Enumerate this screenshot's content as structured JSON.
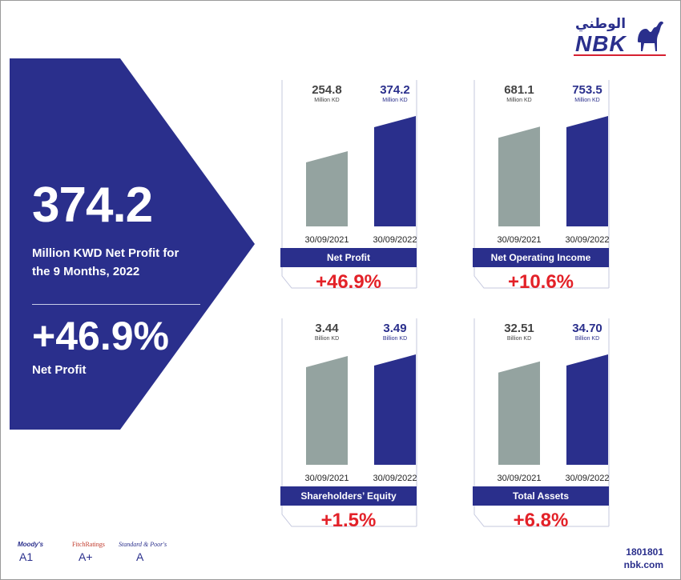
{
  "colors": {
    "navy": "#2a2f8c",
    "gray_bar": "#94a3a0",
    "red": "#e32128"
  },
  "hero": {
    "value": "374.2",
    "description": "Million KWD Net Profit for the 9 Months, 2022",
    "change": "+46.9%",
    "change_label": "Net Profit"
  },
  "brand": {
    "arabic": "الوطني",
    "name": "NBK",
    "logo_icon": "camel-icon"
  },
  "ratings": [
    {
      "agency": "Moody's",
      "grade": "A1"
    },
    {
      "agency": "FitchRatings",
      "grade": "A+"
    },
    {
      "agency": "Standard & Poor's",
      "grade": "A"
    }
  ],
  "contact": {
    "phone": "1801801",
    "website": "nbk.com"
  },
  "chart_data": [
    {
      "type": "bar",
      "title": "Net Profit",
      "change": "+46.9%",
      "unit": "Million KD",
      "categories": [
        "30/09/2021",
        "30/09/2022"
      ],
      "values": [
        254.8,
        374.2
      ],
      "labels": [
        "254.8",
        "374.2"
      ]
    },
    {
      "type": "bar",
      "title": "Net Operating Income",
      "change": "+10.6%",
      "unit": "Million KD",
      "categories": [
        "30/09/2021",
        "30/09/2022"
      ],
      "values": [
        681.1,
        753.5
      ],
      "labels": [
        "681.1",
        "753.5"
      ]
    },
    {
      "type": "bar",
      "title": "Shareholders’ Equity",
      "change": "+1.5%",
      "unit": "Billion KD",
      "categories": [
        "30/09/2021",
        "30/09/2022"
      ],
      "values": [
        3.44,
        3.49
      ],
      "labels": [
        "3.44",
        "3.49"
      ]
    },
    {
      "type": "bar",
      "title": "Total Assets",
      "change": "+6.8%",
      "unit": "Billion KD",
      "categories": [
        "30/09/2021",
        "30/09/2022"
      ],
      "values": [
        32.51,
        34.7
      ],
      "labels": [
        "32.51",
        "34.70"
      ]
    }
  ]
}
